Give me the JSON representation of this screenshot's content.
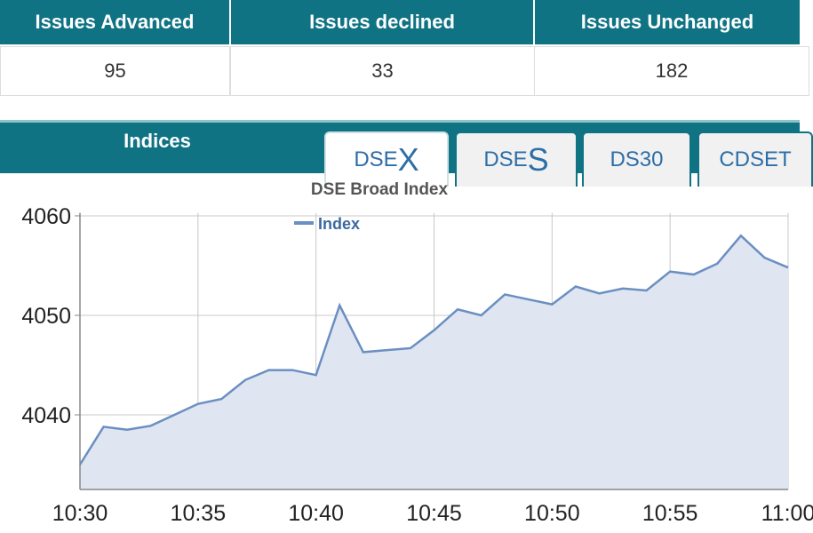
{
  "stats_table": {
    "headers": [
      "Issues Advanced",
      "Issues declined",
      "Issues Unchanged"
    ],
    "values": [
      95,
      33,
      182
    ]
  },
  "indices_panel": {
    "title": "Indices",
    "tabs": [
      [
        "DSE",
        "X"
      ],
      [
        "DSE",
        "S"
      ],
      [
        "DS30"
      ],
      [
        "CDSET"
      ]
    ],
    "active_tab": 0
  },
  "chart_data": {
    "type": "area",
    "title": "DSE Broad Index",
    "x": [
      "10:30",
      "10:31",
      "10:32",
      "10:33",
      "10:34",
      "10:35",
      "10:36",
      "10:37",
      "10:38",
      "10:39",
      "10:40",
      "10:41",
      "10:42",
      "10:43",
      "10:44",
      "10:45",
      "10:46",
      "10:47",
      "10:48",
      "10:49",
      "10:50",
      "10:51",
      "10:52",
      "10:53",
      "10:54",
      "10:55",
      "10:56",
      "10:57",
      "10:58",
      "10:59",
      "11:00"
    ],
    "xticks": [
      "10:30",
      "10:35",
      "10:40",
      "10:45",
      "10:50",
      "10:55",
      "11:00"
    ],
    "series": [
      {
        "name": "Index",
        "color": "#6b8fc2",
        "values": [
          4035,
          4038.8,
          4038.5,
          4038.9,
          4040,
          4041.1,
          4041.6,
          4043.5,
          4044.5,
          4044.5,
          4044,
          4051,
          4046.3,
          4046.5,
          4046.7,
          4048.5,
          4050.6,
          4050,
          4052.1,
          4051.6,
          4051.1,
          4052.9,
          4052.2,
          4052.7,
          4052.5,
          4054.4,
          4054.1,
          4055.2,
          4058,
          4055.8,
          4054.8
        ]
      }
    ],
    "ylim": [
      4032.5,
      4060.3
    ],
    "yticks": [
      4040,
      4050,
      4060
    ],
    "grid": true
  }
}
